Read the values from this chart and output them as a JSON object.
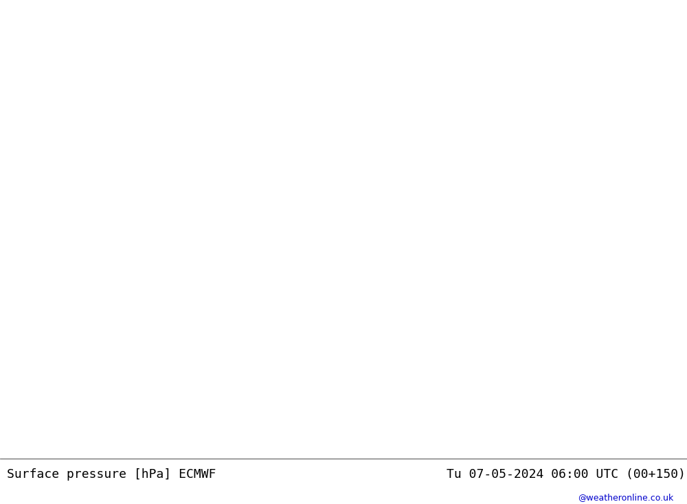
{
  "title_left": "Surface pressure [hPa] ECMWF",
  "title_right": "Tu 07-05-2024 06:00 UTC (00+150)",
  "watermark": "@weatheronline.co.uk",
  "background_ocean": "#d8d8d8",
  "background_land_green": "#b8e6b8",
  "background_land_gray": "#c8c8c8",
  "contour_color_black": "#000000",
  "contour_color_blue": "#0000cc",
  "contour_color_red": "#cc0000",
  "fig_width": 10.0,
  "fig_height": 7.33,
  "dpi": 100
}
